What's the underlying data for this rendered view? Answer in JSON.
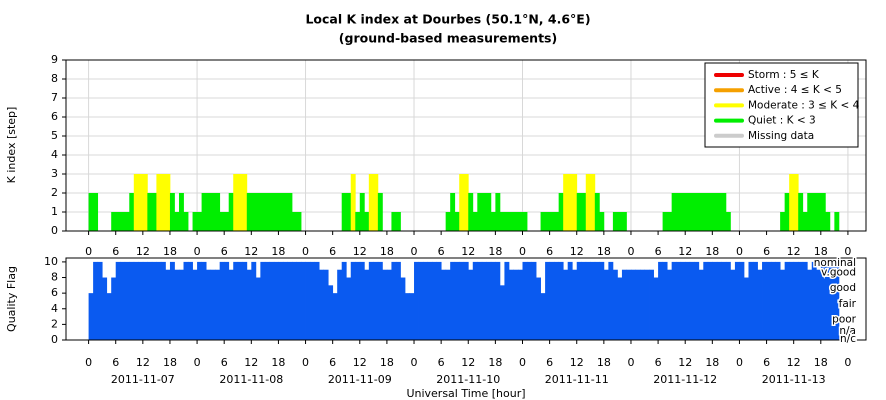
{
  "chart_data": [
    {
      "type": "bar",
      "title": "Local K index at Dourbes (50.1°N, 4.6°E)",
      "subtitle": "(ground-based measurements)",
      "ylabel": "K index [step]",
      "xlim": [
        -5,
        172
      ],
      "ylim": [
        0,
        9
      ],
      "yticks": [
        0,
        1,
        2,
        3,
        4,
        5,
        6,
        7,
        8,
        9
      ],
      "xticks": [
        0,
        6,
        12,
        18,
        {
          "value": 24,
          "label": "0"
        },
        {
          "value": 30,
          "label": "6"
        },
        {
          "value": 36,
          "label": "12"
        },
        {
          "value": 42,
          "label": "18"
        },
        {
          "value": 48,
          "label": "0"
        },
        {
          "value": 54,
          "label": "6"
        },
        {
          "value": 60,
          "label": "12"
        },
        {
          "value": 66,
          "label": "18"
        },
        {
          "value": 72,
          "label": "0"
        },
        {
          "value": 78,
          "label": "6"
        },
        {
          "value": 84,
          "label": "12"
        },
        {
          "value": 90,
          "label": "18"
        },
        {
          "value": 96,
          "label": "0"
        },
        {
          "value": 102,
          "label": "6"
        },
        {
          "value": 108,
          "label": "12"
        },
        {
          "value": 114,
          "label": "18"
        },
        {
          "value": 120,
          "label": "0"
        },
        {
          "value": 126,
          "label": "6"
        },
        {
          "value": 132,
          "label": "12"
        },
        {
          "value": 138,
          "label": "18"
        },
        {
          "value": 144,
          "label": "0"
        },
        {
          "value": 150,
          "label": "6"
        },
        {
          "value": 156,
          "label": "12"
        },
        {
          "value": 162,
          "label": "18"
        },
        {
          "value": 168,
          "label": "0"
        }
      ],
      "grid": true,
      "legend_position": "upper right",
      "levels": [
        {
          "name": "Storm : 5 ≤ K",
          "color": "#ee0000",
          "min": 5
        },
        {
          "name": "Active : 4 ≤ K < 5",
          "color": "#f5a000",
          "min": 4
        },
        {
          "name": "Moderate : 3 ≤ K < 4",
          "color": "#ffff00",
          "min": 3
        },
        {
          "name": "Quiet : K < 3",
          "color": "#00ee00",
          "min": 0
        },
        {
          "name": "Missing data",
          "color": "#cccccc"
        }
      ],
      "values": [
        2,
        2,
        0,
        0,
        0,
        1,
        1,
        1,
        1,
        2,
        3,
        3,
        3,
        2,
        2,
        3,
        3,
        3,
        2,
        1,
        2,
        1,
        0,
        1,
        1,
        2,
        2,
        2,
        2,
        1,
        1,
        2,
        3,
        3,
        3,
        2,
        2,
        2,
        2,
        2,
        2,
        2,
        2,
        2,
        2,
        1,
        1,
        0,
        0,
        0,
        0,
        0,
        0,
        0,
        0,
        0,
        2,
        2,
        3,
        1,
        2,
        1,
        3,
        3,
        2,
        0,
        0,
        1,
        1,
        0,
        0,
        0,
        0,
        0,
        0,
        0,
        0,
        0,
        0,
        1,
        2,
        1,
        3,
        3,
        2,
        1,
        2,
        2,
        2,
        1,
        2,
        1,
        1,
        1,
        1,
        1,
        1,
        0,
        0,
        0,
        1,
        1,
        1,
        1,
        2,
        3,
        3,
        3,
        2,
        2,
        3,
        3,
        2,
        1,
        0,
        0,
        1,
        1,
        1,
        0,
        0,
        0,
        0,
        0,
        0,
        0,
        0,
        1,
        1,
        2,
        2,
        2,
        2,
        2,
        2,
        2,
        2,
        2,
        2,
        2,
        2,
        1,
        0,
        0,
        0,
        0,
        0,
        0,
        0,
        0,
        0,
        0,
        0,
        1,
        2,
        3,
        3,
        2,
        1,
        2,
        2,
        2,
        2,
        1,
        0,
        1,
        0,
        0
      ]
    },
    {
      "type": "bar",
      "ylabel": "Quality Flag",
      "xlabel": "Universal Time [hour]",
      "color": "#0a5af0",
      "xlim": [
        -5,
        172
      ],
      "ylim": [
        0,
        10.5
      ],
      "yticks": [
        0,
        2,
        4,
        6,
        8,
        10
      ],
      "xticks": [
        0,
        6,
        12,
        18,
        {
          "value": 24,
          "label": "0"
        },
        {
          "value": 30,
          "label": "6"
        },
        {
          "value": 36,
          "label": "12"
        },
        {
          "value": 42,
          "label": "18"
        },
        {
          "value": 48,
          "label": "0"
        },
        {
          "value": 54,
          "label": "6"
        },
        {
          "value": 60,
          "label": "12"
        },
        {
          "value": 66,
          "label": "18"
        },
        {
          "value": 72,
          "label": "0"
        },
        {
          "value": 78,
          "label": "6"
        },
        {
          "value": 84,
          "label": "12"
        },
        {
          "value": 90,
          "label": "18"
        },
        {
          "value": 96,
          "label": "0"
        },
        {
          "value": 102,
          "label": "6"
        },
        {
          "value": 108,
          "label": "12"
        },
        {
          "value": 114,
          "label": "18"
        },
        {
          "value": 120,
          "label": "0"
        },
        {
          "value": 126,
          "label": "6"
        },
        {
          "value": 132,
          "label": "12"
        },
        {
          "value": 138,
          "label": "18"
        },
        {
          "value": 144,
          "label": "0"
        },
        {
          "value": 150,
          "label": "6"
        },
        {
          "value": 156,
          "label": "12"
        },
        {
          "value": 162,
          "label": "18"
        },
        {
          "value": 168,
          "label": "0"
        }
      ],
      "xdates": [
        {
          "value": 12,
          "label": "2011-11-07"
        },
        {
          "value": 36,
          "label": "2011-11-08"
        },
        {
          "value": 60,
          "label": "2011-11-09"
        },
        {
          "value": 84,
          "label": "2011-11-10"
        },
        {
          "value": 108,
          "label": "2011-11-11"
        },
        {
          "value": 132,
          "label": "2011-11-12"
        },
        {
          "value": 156,
          "label": "2011-11-13"
        }
      ],
      "quality_levels": [
        {
          "value": 10,
          "label": "nominal"
        },
        {
          "value": 8.5,
          "label": "v.good"
        },
        {
          "value": 6.5,
          "label": "good"
        },
        {
          "value": 4.5,
          "label": "fair"
        },
        {
          "value": 2.5,
          "label": "poor"
        },
        {
          "value": 1,
          "label": "n/a"
        },
        {
          "value": 0,
          "label": "n/c"
        }
      ],
      "values": [
        6,
        10,
        10,
        8,
        6,
        8,
        10,
        10,
        10,
        10,
        10,
        10,
        10,
        10,
        10,
        10,
        10,
        9,
        10,
        9,
        9,
        10,
        10,
        9,
        10,
        10,
        9,
        9,
        9,
        10,
        10,
        9,
        10,
        10,
        10,
        9,
        10,
        8,
        10,
        10,
        10,
        10,
        10,
        10,
        10,
        10,
        10,
        10,
        10,
        10,
        10,
        9,
        9,
        7,
        6,
        9,
        10,
        8,
        10,
        10,
        10,
        9,
        10,
        10,
        10,
        9,
        9,
        10,
        10,
        8,
        6,
        6,
        10,
        10,
        10,
        10,
        10,
        10,
        9,
        9,
        10,
        10,
        10,
        10,
        9,
        10,
        10,
        10,
        10,
        10,
        10,
        7,
        10,
        9,
        9,
        9,
        10,
        10,
        10,
        8,
        6,
        10,
        10,
        10,
        10,
        9,
        10,
        9,
        10,
        10,
        10,
        10,
        10,
        10,
        9,
        10,
        9,
        8,
        9,
        9,
        9,
        9,
        9,
        9,
        9,
        8,
        10,
        10,
        9,
        10,
        10,
        10,
        10,
        10,
        10,
        9,
        10,
        10,
        10,
        10,
        10,
        10,
        9,
        10,
        10,
        8,
        10,
        10,
        9,
        10,
        10,
        10,
        10,
        9,
        10,
        10,
        10,
        10,
        10,
        9,
        10,
        9,
        10,
        10,
        10,
        10,
        null,
        null
      ]
    }
  ]
}
